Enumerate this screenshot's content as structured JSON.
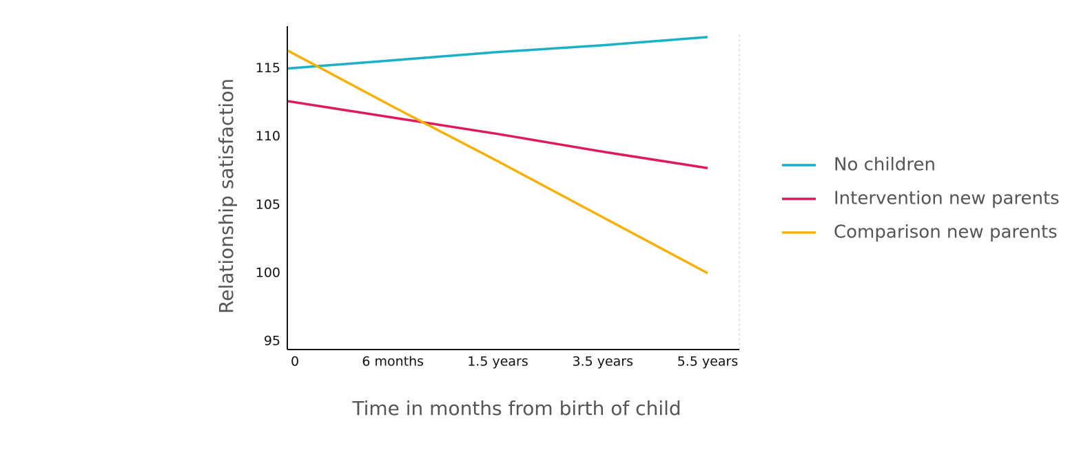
{
  "chart_data": {
    "type": "line",
    "x_label": "Time in months from birth of child",
    "y_label": "Relationship satisfaction",
    "categories": [
      "0",
      "6 months",
      "1.5 years",
      "3.5 years",
      "5.5 years"
    ],
    "series": [
      {
        "name": "No children",
        "color": "#1ab0c8",
        "values": [
          115,
          115.6,
          116.2,
          116.7,
          117.3
        ]
      },
      {
        "name": "Intervention new parents",
        "color": "#e0185e",
        "values": [
          112.6,
          111.4,
          110.2,
          108.9,
          107.7
        ]
      },
      {
        "name": "Comparison new parents",
        "color": "#f5b000",
        "values": [
          116.3,
          112.2,
          108.2,
          104.1,
          100.0
        ]
      }
    ],
    "ylim": [
      94.4,
      118.1
    ],
    "yticks": [
      95,
      100,
      105,
      110,
      115
    ],
    "grid": false,
    "legend": "right"
  }
}
